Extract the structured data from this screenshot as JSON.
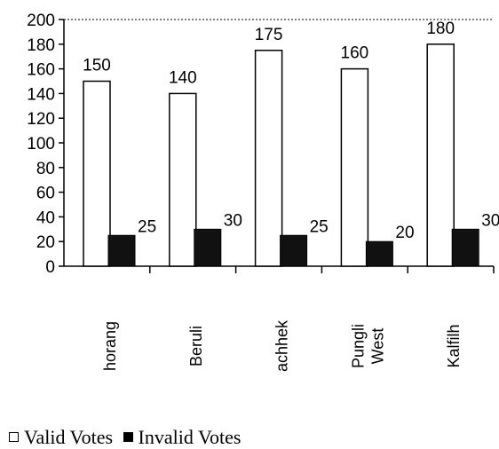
{
  "chart_data": {
    "type": "bar",
    "categories": [
      "horang",
      "Beruli",
      "achhek",
      "Pungli West",
      "Kalfilh"
    ],
    "series": [
      {
        "name": "Valid Votes",
        "values": [
          150,
          140,
          175,
          160,
          180
        ]
      },
      {
        "name": "Invalid Votes",
        "values": [
          25,
          30,
          25,
          20,
          30
        ]
      }
    ],
    "yticks": [
      0,
      20,
      40,
      60,
      80,
      100,
      120,
      140,
      160,
      180,
      200
    ],
    "ylim": [
      0,
      200
    ],
    "grid": false,
    "legend_position": "bottom",
    "colors": {
      "valid_fill": "#ffffff",
      "invalid_fill": "#111111",
      "axis": "#000000"
    }
  },
  "legend": {
    "valid_label": "Valid Votes",
    "invalid_label": "Invalid Votes"
  }
}
